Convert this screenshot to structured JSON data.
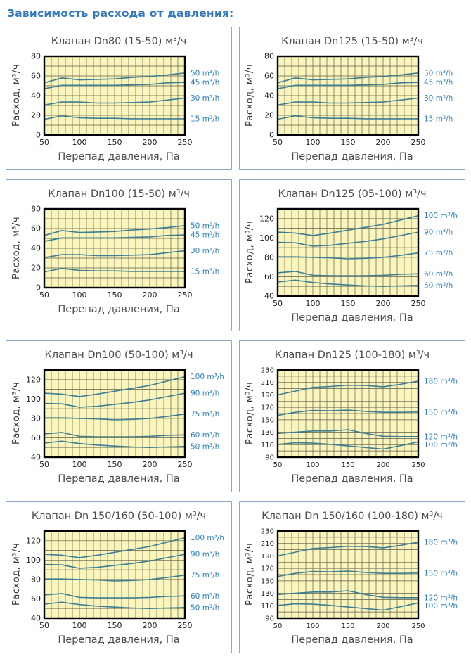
{
  "page_title": "Зависимость расхода от давления:",
  "colors": {
    "heading": "#3579bd",
    "panel_border": "#8ba7c7",
    "plot_bg": "#f9f5bc",
    "grid_line": "#60604a",
    "plot_border": "#000000",
    "series_line": "#3d7e94",
    "legend_text": "#2e7fc2",
    "title_text": "#4c4c4c",
    "tick_text": "#1d1d1d"
  },
  "chart_data": [
    {
      "type": "line",
      "title": "Клапан Dn80 (15-50) м³/ч",
      "xlabel": "Перепад давления, Па",
      "ylabel": "Расход, м³/ч",
      "xlim": [
        50,
        250
      ],
      "ylim": [
        0,
        80
      ],
      "xticks": [
        50,
        100,
        150,
        200,
        250
      ],
      "yticks": [
        0,
        20,
        40,
        60,
        80
      ],
      "grid_step_x": 10,
      "grid_step_y": 10,
      "grid": true,
      "legend_position": "right",
      "x": [
        50,
        75,
        100,
        125,
        150,
        175,
        200,
        225,
        250
      ],
      "series": [
        {
          "name": "50 m³/h",
          "values": [
            53,
            58,
            56,
            56.5,
            57,
            58.5,
            59.5,
            61,
            63
          ]
        },
        {
          "name": "45 m³/h",
          "values": [
            47,
            50.5,
            50.5,
            50.5,
            50.5,
            51,
            51.5,
            53,
            53.5
          ]
        },
        {
          "name": "30 m³/h",
          "values": [
            30.5,
            33.5,
            33.5,
            32.5,
            32.5,
            33,
            33.5,
            35.5,
            37.5
          ]
        },
        {
          "name": "15 m³/h",
          "values": [
            16,
            19.5,
            17.5,
            17,
            17,
            16.5,
            16.5,
            16.5,
            16.5
          ]
        }
      ]
    },
    {
      "type": "line",
      "title": "Клапан Dn125 (15-50) м³/ч",
      "xlabel": "Перепад давления, Па",
      "ylabel": "Расход, м³/ч",
      "xlim": [
        50,
        250
      ],
      "ylim": [
        0,
        80
      ],
      "xticks": [
        50,
        100,
        150,
        200,
        250
      ],
      "yticks": [
        0,
        20,
        40,
        60,
        80
      ],
      "grid_step_x": 10,
      "grid_step_y": 10,
      "grid": true,
      "legend_position": "right",
      "x": [
        50,
        75,
        100,
        125,
        150,
        175,
        200,
        225,
        250
      ],
      "series": [
        {
          "name": "50 m³/h",
          "values": [
            53,
            58,
            56,
            56.5,
            57,
            58.5,
            59.5,
            61,
            63
          ]
        },
        {
          "name": "45 m³/h",
          "values": [
            47,
            50.5,
            50.5,
            50.5,
            50.5,
            51,
            51.5,
            53,
            53.5
          ]
        },
        {
          "name": "30 m³/h",
          "values": [
            30.5,
            33.5,
            33.5,
            32.5,
            32.5,
            33,
            33.5,
            35.5,
            37.5
          ]
        },
        {
          "name": "15 m³/h",
          "values": [
            16,
            19.5,
            17.5,
            17,
            17,
            16.5,
            16.5,
            16.5,
            16.5
          ]
        }
      ]
    },
    {
      "type": "line",
      "title": "Клапан Dn100 (15-50) м³/ч",
      "xlabel": "Перепад давления, Па",
      "ylabel": "Расход, м³/ч",
      "xlim": [
        50,
        250
      ],
      "ylim": [
        0,
        80
      ],
      "xticks": [
        50,
        100,
        150,
        200,
        250
      ],
      "yticks": [
        0,
        20,
        40,
        60,
        80
      ],
      "grid_step_x": 10,
      "grid_step_y": 10,
      "grid": true,
      "legend_position": "right",
      "x": [
        50,
        75,
        100,
        125,
        150,
        175,
        200,
        225,
        250
      ],
      "series": [
        {
          "name": "50 m³/h",
          "values": [
            53,
            58,
            56,
            56.5,
            57,
            58.5,
            59.5,
            61,
            63
          ]
        },
        {
          "name": "45 m³/h",
          "values": [
            47,
            50.5,
            50.5,
            50.5,
            50.5,
            51,
            51.5,
            53,
            53.5
          ]
        },
        {
          "name": "30 m³/h",
          "values": [
            30.5,
            33.5,
            33.5,
            32.5,
            32.5,
            33,
            33.5,
            35.5,
            37.5
          ]
        },
        {
          "name": "15 m³/h",
          "values": [
            16,
            19.5,
            17.5,
            17,
            17,
            16.5,
            16.5,
            16.5,
            16.5
          ]
        }
      ]
    },
    {
      "type": "line",
      "title": "Клапан Dn125 (05-100) м³/ч",
      "xlabel": "Перепад давления, Па",
      "ylabel": "Расход, м³/ч",
      "xlim": [
        50,
        250
      ],
      "ylim": [
        40,
        130
      ],
      "xticks": [
        50,
        100,
        150,
        200,
        250
      ],
      "yticks": [
        40,
        60,
        80,
        100,
        120
      ],
      "grid_step_x": 10,
      "grid_step_y": 10,
      "grid": true,
      "legend_position": "right",
      "x": [
        50,
        75,
        100,
        125,
        150,
        175,
        200,
        225,
        250
      ],
      "series": [
        {
          "name": "100 m³/h",
          "values": [
            106,
            105,
            102.5,
            105,
            108,
            111,
            114,
            118.5,
            123
          ]
        },
        {
          "name": "90 m³/h",
          "values": [
            95.5,
            95,
            91.5,
            92.5,
            94.5,
            96.5,
            99,
            102.5,
            106
          ]
        },
        {
          "name": "75 m³/h",
          "values": [
            80.5,
            80.5,
            80,
            79.5,
            78.5,
            79,
            80,
            82,
            84.5
          ]
        },
        {
          "name": "60 m³/h",
          "values": [
            64,
            65.5,
            61.5,
            61,
            61,
            61,
            61.5,
            62.5,
            63
          ]
        },
        {
          "name": "50 m³/h",
          "values": [
            54.5,
            56.5,
            54,
            52.5,
            51.5,
            50.5,
            50,
            50.5,
            51
          ]
        }
      ]
    },
    {
      "type": "line",
      "title": "Клапан Dn100 (50-100) м³/ч",
      "xlabel": "Перепад давления, Па",
      "ylabel": "Расход, м³/ч",
      "xlim": [
        50,
        250
      ],
      "ylim": [
        40,
        130
      ],
      "xticks": [
        50,
        100,
        150,
        200,
        250
      ],
      "yticks": [
        40,
        60,
        80,
        100,
        120
      ],
      "grid_step_x": 10,
      "grid_step_y": 10,
      "grid": true,
      "legend_position": "right",
      "x": [
        50,
        75,
        100,
        125,
        150,
        175,
        200,
        225,
        250
      ],
      "series": [
        {
          "name": "100 m³/h",
          "values": [
            106,
            105,
            102.5,
            105,
            108,
            111,
            114,
            118.5,
            123
          ]
        },
        {
          "name": "90 m³/h",
          "values": [
            95.5,
            95,
            91.5,
            92.5,
            94.5,
            96.5,
            99,
            102.5,
            106
          ]
        },
        {
          "name": "75 m³/h",
          "values": [
            80.5,
            80.5,
            80,
            79.5,
            78.5,
            79,
            80,
            82,
            84.5
          ]
        },
        {
          "name": "60 m³/h",
          "values": [
            64,
            65.5,
            61.5,
            61,
            61,
            61,
            61.5,
            62.5,
            63
          ]
        },
        {
          "name": "50 m³/h",
          "values": [
            54.5,
            56.5,
            54,
            52.5,
            51.5,
            50.5,
            50,
            50.5,
            51
          ]
        }
      ]
    },
    {
      "type": "line",
      "title": "Клапан Dn125 (100-180) м³/ч",
      "xlabel": "Перепад давления, Па",
      "ylabel": "Расход, м³/ч",
      "xlim": [
        50,
        250
      ],
      "ylim": [
        90,
        230
      ],
      "xticks": [
        50,
        100,
        150,
        200,
        250
      ],
      "yticks": [
        90,
        110,
        130,
        150,
        170,
        190,
        210,
        230
      ],
      "grid_step_x": 10,
      "grid_step_y": 10,
      "grid": true,
      "legend_position": "right",
      "x": [
        50,
        75,
        100,
        125,
        150,
        175,
        200,
        225,
        250
      ],
      "series": [
        {
          "name": "180 m³/h",
          "values": [
            190,
            196,
            202,
            203.5,
            205.5,
            205,
            203,
            207,
            212
          ]
        },
        {
          "name": "150 m³/h",
          "values": [
            157,
            162,
            165,
            164.5,
            165.5,
            163.5,
            162,
            162,
            162.5
          ]
        },
        {
          "name": "120 m³/h",
          "values": [
            128,
            130,
            132,
            132,
            134,
            128,
            123.5,
            123,
            123
          ]
        },
        {
          "name": "100 m³/h",
          "values": [
            110.5,
            113,
            112.5,
            110.5,
            108,
            105.5,
            103,
            108.5,
            114.5
          ]
        }
      ]
    },
    {
      "type": "line",
      "title": "Клапан Dn 150/160 (50-100) м³/ч",
      "xlabel": "Перепад давления, Па",
      "ylabel": "Расход, м³/ч",
      "xlim": [
        50,
        250
      ],
      "ylim": [
        40,
        130
      ],
      "xticks": [
        50,
        100,
        150,
        200,
        250
      ],
      "yticks": [
        40,
        60,
        80,
        100,
        120
      ],
      "grid_step_x": 10,
      "grid_step_y": 10,
      "grid": true,
      "legend_position": "right",
      "x": [
        50,
        75,
        100,
        125,
        150,
        175,
        200,
        225,
        250
      ],
      "series": [
        {
          "name": "100 m³/h",
          "values": [
            106,
            105,
            102.5,
            105,
            108,
            111,
            114,
            118.5,
            123
          ]
        },
        {
          "name": "90 m³/h",
          "values": [
            95.5,
            95,
            91.5,
            92.5,
            94.5,
            96.5,
            99,
            102.5,
            106
          ]
        },
        {
          "name": "75 m³/h",
          "values": [
            80.5,
            80.5,
            80,
            79.5,
            78.5,
            79,
            80,
            82,
            84.5
          ]
        },
        {
          "name": "60 m³/h",
          "values": [
            64,
            65.5,
            61.5,
            61,
            61,
            61,
            61.5,
            62.5,
            63
          ]
        },
        {
          "name": "50 m³/h",
          "values": [
            54.5,
            56.5,
            54,
            52.5,
            51.5,
            50.5,
            50,
            50.5,
            51
          ]
        }
      ]
    },
    {
      "type": "line",
      "title": "Клапан Dn 150/160 (100-180) м³/ч",
      "xlabel": "Перепад давления, Па",
      "ylabel": "Расход, м³/ч",
      "xlim": [
        50,
        250
      ],
      "ylim": [
        90,
        230
      ],
      "xticks": [
        50,
        100,
        150,
        200,
        250
      ],
      "yticks": [
        90,
        110,
        130,
        150,
        170,
        190,
        210,
        230
      ],
      "grid_step_x": 10,
      "grid_step_y": 10,
      "grid": true,
      "legend_position": "right",
      "x": [
        50,
        75,
        100,
        125,
        150,
        175,
        200,
        225,
        250
      ],
      "series": [
        {
          "name": "180 m³/h",
          "values": [
            190,
            196,
            202,
            203.5,
            205.5,
            205,
            203,
            207,
            212
          ]
        },
        {
          "name": "150 m³/h",
          "values": [
            157,
            162,
            165,
            164.5,
            165.5,
            163.5,
            162,
            162,
            162.5
          ]
        },
        {
          "name": "120 m³/h",
          "values": [
            128,
            130,
            132,
            132,
            134,
            128,
            123.5,
            123,
            123
          ]
        },
        {
          "name": "100 m³/h",
          "values": [
            110.5,
            113,
            112.5,
            110.5,
            108,
            105.5,
            103,
            108.5,
            114.5
          ]
        }
      ]
    }
  ]
}
